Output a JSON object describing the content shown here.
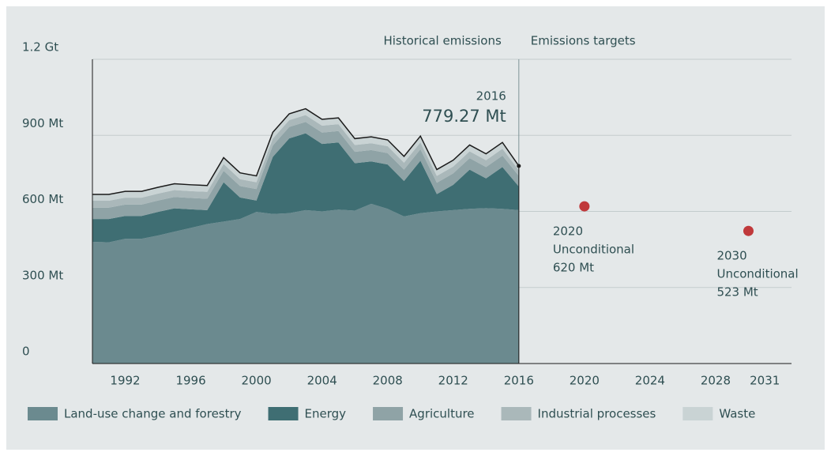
{
  "chart_data": {
    "type": "stacked_area",
    "x": [
      1990,
      1991,
      1992,
      1993,
      1994,
      1995,
      1996,
      1997,
      1998,
      1999,
      2000,
      2001,
      2002,
      2003,
      2004,
      2005,
      2006,
      2007,
      2008,
      2009,
      2010,
      2011,
      2012,
      2013,
      2014,
      2015,
      2016
    ],
    "series": [
      {
        "name": "Land-use change and forestry",
        "color": "#6b8a8f",
        "values": [
          480,
          478,
          492,
          492,
          505,
          520,
          535,
          550,
          560,
          570,
          598,
          590,
          593,
          605,
          600,
          607,
          603,
          630,
          610,
          580,
          593,
          600,
          605,
          610,
          613,
          610,
          605
        ]
      },
      {
        "name": "Energy",
        "color": "#3f6e73",
        "values": [
          90,
          92,
          90,
          90,
          93,
          92,
          73,
          55,
          155,
          85,
          45,
          225,
          295,
          303,
          266,
          265,
          187,
          167,
          175,
          140,
          207,
          68,
          100,
          155,
          117,
          165,
          93
        ]
      },
      {
        "name": "Agriculture",
        "color": "#8fa3a6",
        "values": [
          45,
          45,
          45,
          45,
          45,
          45,
          45,
          45,
          45,
          45,
          45,
          45,
          45,
          45,
          45,
          45,
          45,
          45,
          45,
          45,
          45,
          45,
          45,
          45,
          45,
          45,
          42
        ]
      },
      {
        "name": "Industrial processes",
        "color": "#aab8ba",
        "values": [
          27,
          27,
          27,
          27,
          27,
          27,
          27,
          27,
          27,
          27,
          27,
          27,
          27,
          27,
          27,
          27,
          27,
          27,
          27,
          27,
          27,
          27,
          27,
          27,
          27,
          27,
          22
        ]
      },
      {
        "name": "Waste",
        "color": "#c9d3d4",
        "values": [
          25,
          25,
          25,
          25,
          25,
          25,
          25,
          25,
          25,
          25,
          25,
          25,
          25,
          25,
          25,
          25,
          25,
          25,
          25,
          25,
          25,
          25,
          25,
          25,
          25,
          25,
          17.27
        ]
      }
    ],
    "xlim": [
      1990,
      2032
    ],
    "xticks": [
      1992,
      1996,
      2000,
      2004,
      2008,
      2012,
      2016,
      2020,
      2024,
      2028,
      2031
    ],
    "ylim": [
      0,
      1200
    ],
    "yticks": [
      0,
      {
        "value": 300,
        "label": "300 Mt"
      },
      {
        "value": 600,
        "label": "600 Mt"
      },
      {
        "value": 900,
        "label": "900 Mt"
      },
      {
        "value": 1200,
        "label": "1.2 Gt"
      }
    ],
    "grid": true,
    "section_labels": [
      "Historical emissions",
      "Emissions targets"
    ],
    "divider_x": 2016,
    "annotation": {
      "x": 2016,
      "year_label": "2016",
      "value": 779.27,
      "value_label": "779.27 Mt"
    },
    "targets": {
      "color": "#c0393b",
      "points": [
        {
          "x": 2020,
          "year_label": "2020",
          "label": "Unconditional",
          "value": 620,
          "value_label": "620 Mt"
        },
        {
          "x": 2030,
          "year_label": "2030",
          "label": "Unconditional",
          "value": 523,
          "value_label": "523 Mt"
        }
      ]
    }
  }
}
